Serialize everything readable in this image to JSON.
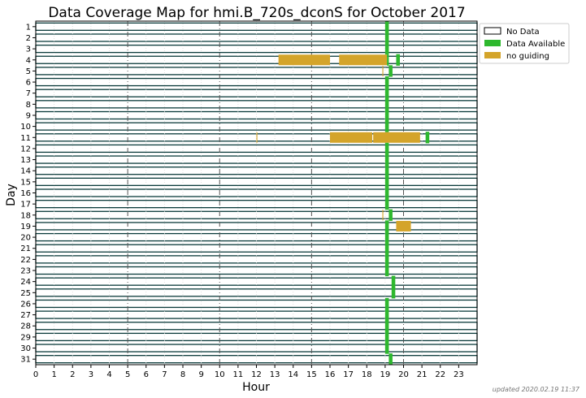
{
  "chart_data": {
    "type": "heatmap",
    "title": "Data Coverage Map for hmi.B_720s_dconS for October 2017",
    "xlabel": "Hour",
    "ylabel": "Day",
    "xlim": [
      0,
      24
    ],
    "xticks": [
      "0",
      "1",
      "2",
      "3",
      "4",
      "5",
      "6",
      "7",
      "8",
      "9",
      "10",
      "11",
      "12",
      "13",
      "14",
      "15",
      "16",
      "17",
      "18",
      "19",
      "20",
      "21",
      "22",
      "23"
    ],
    "major_grid_hours": [
      5,
      10,
      15,
      20
    ],
    "days": [
      "1",
      "2",
      "3",
      "4",
      "5",
      "6",
      "7",
      "8",
      "9",
      "10",
      "11",
      "12",
      "13",
      "14",
      "15",
      "16",
      "17",
      "18",
      "19",
      "20",
      "21",
      "22",
      "23",
      "24",
      "25",
      "26",
      "27",
      "28",
      "29",
      "30",
      "31"
    ],
    "legend": {
      "placement": "top-right, outside plot",
      "entries": [
        {
          "label": "No Data",
          "color": "#ffffff"
        },
        {
          "label": "Data Available",
          "color": "#2eb82e"
        },
        {
          "label": "no guiding",
          "color": "#d4a42a"
        }
      ]
    },
    "colors": {
      "no_data_line": "#0b3b3b",
      "available": "#2eb82e",
      "no_guiding": "#d4a42a"
    },
    "no_data_default": true,
    "segments": [
      {
        "day": 1,
        "start": 19.0,
        "end": 19.2,
        "status": "available"
      },
      {
        "day": 2,
        "start": 19.0,
        "end": 19.2,
        "status": "available"
      },
      {
        "day": 3,
        "start": 19.0,
        "end": 19.2,
        "status": "available"
      },
      {
        "day": 4,
        "start": 13.2,
        "end": 16.0,
        "status": "no_guiding"
      },
      {
        "day": 4,
        "start": 16.5,
        "end": 19.1,
        "status": "no_guiding"
      },
      {
        "day": 4,
        "start": 19.1,
        "end": 19.2,
        "status": "available"
      },
      {
        "day": 4,
        "start": 19.6,
        "end": 19.8,
        "status": "available"
      },
      {
        "day": 5,
        "start": 18.85,
        "end": 18.9,
        "status": "no_guiding"
      },
      {
        "day": 5,
        "start": 19.2,
        "end": 19.4,
        "status": "available"
      },
      {
        "day": 6,
        "start": 19.0,
        "end": 19.2,
        "status": "available"
      },
      {
        "day": 7,
        "start": 19.0,
        "end": 19.2,
        "status": "available"
      },
      {
        "day": 8,
        "start": 19.0,
        "end": 19.2,
        "status": "available"
      },
      {
        "day": 9,
        "start": 19.0,
        "end": 19.2,
        "status": "available"
      },
      {
        "day": 10,
        "start": 19.0,
        "end": 19.2,
        "status": "available"
      },
      {
        "day": 11,
        "start": 12.0,
        "end": 12.05,
        "status": "no_guiding"
      },
      {
        "day": 11,
        "start": 16.0,
        "end": 18.3,
        "status": "no_guiding"
      },
      {
        "day": 11,
        "start": 18.35,
        "end": 20.9,
        "status": "no_guiding"
      },
      {
        "day": 11,
        "start": 21.2,
        "end": 21.4,
        "status": "available"
      },
      {
        "day": 12,
        "start": 19.0,
        "end": 19.2,
        "status": "available"
      },
      {
        "day": 13,
        "start": 19.0,
        "end": 19.2,
        "status": "available"
      },
      {
        "day": 14,
        "start": 19.0,
        "end": 19.2,
        "status": "available"
      },
      {
        "day": 15,
        "start": 19.0,
        "end": 19.2,
        "status": "available"
      },
      {
        "day": 16,
        "start": 19.0,
        "end": 19.2,
        "status": "available"
      },
      {
        "day": 17,
        "start": 19.0,
        "end": 19.2,
        "status": "available"
      },
      {
        "day": 18,
        "start": 18.85,
        "end": 18.9,
        "status": "no_guiding"
      },
      {
        "day": 18,
        "start": 19.2,
        "end": 19.4,
        "status": "available"
      },
      {
        "day": 19,
        "start": 19.0,
        "end": 19.2,
        "status": "available"
      },
      {
        "day": 19,
        "start": 19.6,
        "end": 20.4,
        "status": "no_guiding"
      },
      {
        "day": 20,
        "start": 19.0,
        "end": 19.2,
        "status": "available"
      },
      {
        "day": 21,
        "start": 19.0,
        "end": 19.2,
        "status": "available"
      },
      {
        "day": 22,
        "start": 19.0,
        "end": 19.2,
        "status": "available"
      },
      {
        "day": 23,
        "start": 19.0,
        "end": 19.2,
        "status": "available"
      },
      {
        "day": 24,
        "start": 19.35,
        "end": 19.55,
        "status": "available"
      },
      {
        "day": 25,
        "start": 19.35,
        "end": 19.55,
        "status": "available"
      },
      {
        "day": 26,
        "start": 19.0,
        "end": 19.2,
        "status": "available"
      },
      {
        "day": 27,
        "start": 19.0,
        "end": 19.2,
        "status": "available"
      },
      {
        "day": 28,
        "start": 19.0,
        "end": 19.2,
        "status": "available"
      },
      {
        "day": 29,
        "start": 19.0,
        "end": 19.2,
        "status": "available"
      },
      {
        "day": 30,
        "start": 19.0,
        "end": 19.2,
        "status": "available"
      },
      {
        "day": 31,
        "start": 19.2,
        "end": 19.4,
        "status": "available"
      }
    ]
  },
  "footer": {
    "updated": "updated 2020.02.19 11:37"
  }
}
